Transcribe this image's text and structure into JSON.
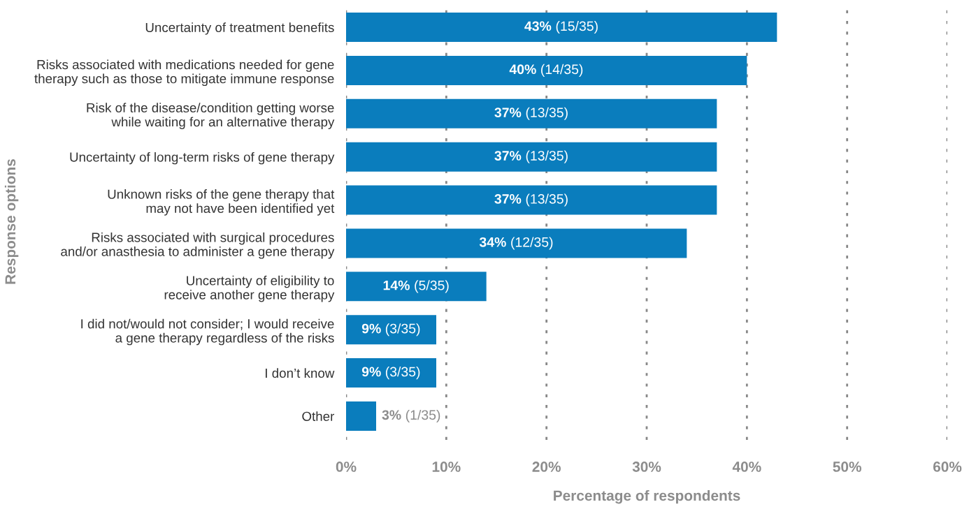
{
  "chart_data": {
    "type": "bar",
    "orientation": "horizontal",
    "xlabel": "Percentage of respondents",
    "ylabel": "Response options",
    "categories": [
      "Uncertainty of treatment benefits",
      "Risks associated with medications needed for gene\ntherapy such as those to mitigate immune response",
      "Risk of the disease/condition getting worse\nwhile waiting for an alternative therapy",
      "Uncertainty of long-term risks of gene therapy",
      "Unknown risks of the gene therapy that\nmay not have been identified yet",
      "Risks associated with surgical procedures\nand/or anasthesia to administer a gene therapy",
      "Uncertainty of eligibility to\nreceive another gene therapy",
      "I did not/would not consider; I would receive\na gene therapy regardless of the risks",
      "I don’t know",
      "Other"
    ],
    "values": [
      43,
      40,
      37,
      37,
      37,
      34,
      14,
      9,
      9,
      3
    ],
    "value_labels": [
      "43% (15/35)",
      "40% (14/35)",
      "37% (13/35)",
      "37% (13/35)",
      "37% (13/35)",
      "34% (12/35)",
      "14% (5/35)",
      "9% (3/35)",
      "9% (3/35)",
      "3% (1/35)"
    ],
    "color": "#0a7dbd",
    "xlim": [
      0,
      60
    ],
    "xticks": [
      {
        "value": 0,
        "label": "0%"
      },
      {
        "value": 10,
        "label": "10%"
      },
      {
        "value": 20,
        "label": "20%"
      },
      {
        "value": 30,
        "label": "30%"
      },
      {
        "value": 40,
        "label": "40%"
      },
      {
        "value": 50,
        "label": "50%"
      },
      {
        "value": 60,
        "label": "60%"
      }
    ],
    "grid": "x",
    "legend": false
  }
}
